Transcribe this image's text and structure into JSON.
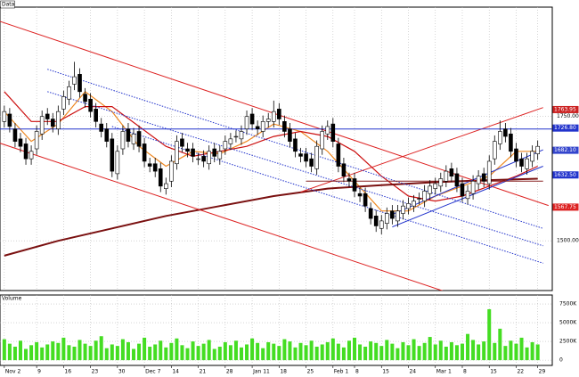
{
  "chart_data": [
    {
      "type": "candlestick",
      "title": "Data",
      "xlim": [
        -0.8,
        101.7
      ],
      "ylim": [
        1400,
        1970
      ],
      "yticks": [
        {
          "value": 1750,
          "label": "1750.00"
        },
        {
          "value": 1500,
          "label": "1500.00"
        }
      ],
      "grid": true,
      "up_color": "#ffffff",
      "down_color": "#000000",
      "open": [
        1740,
        1755,
        1725,
        1705,
        1695,
        1665,
        1685,
        1715,
        1755,
        1745,
        1725,
        1765,
        1785,
        1815,
        1835,
        1795,
        1785,
        1765,
        1735,
        1725,
        1705,
        1635,
        1685,
        1725,
        1695,
        1720,
        1695,
        1655,
        1655,
        1645,
        1605,
        1620,
        1655,
        1705,
        1685,
        1685,
        1665,
        1670,
        1655,
        1685,
        1665,
        1685,
        1695,
        1710,
        1705,
        1725,
        1755,
        1730,
        1720,
        1740,
        1740,
        1765,
        1740,
        1725,
        1705,
        1675,
        1675,
        1665,
        1645,
        1685,
        1715,
        1735,
        1695,
        1655,
        1625,
        1625,
        1595,
        1595,
        1565,
        1550,
        1525,
        1535,
        1560,
        1540,
        1555,
        1565,
        1570,
        1585,
        1580,
        1595,
        1605,
        1610,
        1620,
        1645,
        1635,
        1615,
        1585,
        1595,
        1615,
        1635,
        1615,
        1665,
        1695,
        1725,
        1715,
        1685,
        1665,
        1645,
        1660,
        1675
      ],
      "high": [
        1772,
        1767,
        1737,
        1717,
        1707,
        1692,
        1732,
        1762,
        1767,
        1757,
        1772,
        1802,
        1822,
        1860,
        1847,
        1807,
        1797,
        1777,
        1747,
        1737,
        1717,
        1692,
        1732,
        1737,
        1727,
        1732,
        1707,
        1667,
        1667,
        1657,
        1627,
        1672,
        1712,
        1717,
        1697,
        1697,
        1677,
        1682,
        1692,
        1697,
        1692,
        1712,
        1717,
        1722,
        1732,
        1762,
        1767,
        1742,
        1752,
        1757,
        1782,
        1777,
        1752,
        1737,
        1717,
        1687,
        1687,
        1677,
        1702,
        1732,
        1742,
        1747,
        1707,
        1667,
        1637,
        1637,
        1607,
        1607,
        1577,
        1562,
        1552,
        1567,
        1572,
        1572,
        1582,
        1587,
        1592,
        1597,
        1612,
        1622,
        1627,
        1637,
        1652,
        1657,
        1647,
        1627,
        1612,
        1632,
        1642,
        1647,
        1672,
        1712,
        1742,
        1737,
        1727,
        1697,
        1677,
        1677,
        1692,
        1702
      ],
      "low": [
        1728,
        1718,
        1688,
        1678,
        1653,
        1653,
        1673,
        1703,
        1733,
        1718,
        1713,
        1753,
        1773,
        1803,
        1788,
        1768,
        1748,
        1728,
        1708,
        1688,
        1628,
        1623,
        1673,
        1688,
        1683,
        1678,
        1648,
        1638,
        1628,
        1598,
        1593,
        1608,
        1643,
        1678,
        1668,
        1658,
        1653,
        1648,
        1643,
        1658,
        1653,
        1673,
        1683,
        1698,
        1693,
        1713,
        1723,
        1713,
        1708,
        1728,
        1728,
        1733,
        1708,
        1688,
        1668,
        1658,
        1648,
        1638,
        1633,
        1673,
        1703,
        1688,
        1638,
        1618,
        1608,
        1588,
        1578,
        1558,
        1533,
        1518,
        1513,
        1523,
        1533,
        1528,
        1543,
        1553,
        1558,
        1573,
        1568,
        1583,
        1593,
        1598,
        1608,
        1618,
        1598,
        1578,
        1573,
        1583,
        1603,
        1608,
        1603,
        1653,
        1683,
        1698,
        1668,
        1648,
        1638,
        1633,
        1648,
        1663
      ],
      "close": [
        1760,
        1730,
        1700,
        1690,
        1665,
        1680,
        1720,
        1750,
        1745,
        1730,
        1760,
        1790,
        1810,
        1830,
        1800,
        1780,
        1760,
        1740,
        1720,
        1700,
        1640,
        1680,
        1720,
        1700,
        1715,
        1690,
        1660,
        1650,
        1640,
        1610,
        1615,
        1660,
        1700,
        1690,
        1680,
        1670,
        1665,
        1660,
        1680,
        1670,
        1680,
        1700,
        1705,
        1710,
        1720,
        1750,
        1735,
        1725,
        1740,
        1745,
        1760,
        1745,
        1720,
        1700,
        1680,
        1670,
        1660,
        1650,
        1690,
        1720,
        1730,
        1700,
        1650,
        1630,
        1620,
        1600,
        1590,
        1570,
        1545,
        1530,
        1540,
        1555,
        1545,
        1560,
        1570,
        1575,
        1580,
        1585,
        1600,
        1610,
        1615,
        1625,
        1640,
        1630,
        1610,
        1590,
        1600,
        1620,
        1630,
        1620,
        1660,
        1700,
        1720,
        1710,
        1680,
        1660,
        1650,
        1665,
        1680,
        1690
      ],
      "lines": [
        {
          "x": [
            0,
            5,
            10,
            15,
            20,
            25,
            30,
            35,
            40,
            45,
            50,
            55,
            60,
            65,
            70,
            75,
            80,
            85,
            90,
            95,
            99
          ],
          "values": [
            1760,
            1700,
            1735,
            1800,
            1760,
            1690,
            1650,
            1680,
            1675,
            1700,
            1735,
            1720,
            1680,
            1620,
            1560,
            1560,
            1590,
            1610,
            1630,
            1680,
            1680
          ],
          "color": "#ee8822",
          "width": 1.2
        },
        {
          "x": [
            0,
            5,
            10,
            15,
            20,
            25,
            30,
            35,
            40,
            45,
            50,
            55,
            60,
            65,
            70,
            75,
            80,
            85,
            90,
            95,
            99
          ],
          "values": [
            1800,
            1740,
            1740,
            1770,
            1770,
            1730,
            1690,
            1670,
            1680,
            1690,
            1710,
            1720,
            1710,
            1680,
            1630,
            1590,
            1580,
            1590,
            1610,
            1630,
            1650
          ],
          "color": "#cc1111",
          "width": 1.2
        },
        {
          "x": [
            0,
            10,
            20,
            30,
            40,
            50,
            60,
            70,
            80,
            90,
            99
          ],
          "values": [
            1470,
            1500,
            1525,
            1550,
            1570,
            1590,
            1605,
            1612,
            1618,
            1622,
            1625
          ],
          "color": "#7a1010",
          "width": 2
        },
        {
          "x": [
            -1,
            101
          ],
          "values": [
            1942,
            1571
          ],
          "color": "#dd2222",
          "width": 1
        },
        {
          "x": [
            -1,
            84
          ],
          "values": [
            1697,
            1390
          ],
          "color": "#dd2222",
          "width": 1
        },
        {
          "x": [
            55,
            100
          ],
          "values": [
            1598,
            1768
          ],
          "color": "#dd2222",
          "width": 1
        },
        {
          "x": [
            8,
            100
          ],
          "values": [
            1845,
            1525
          ],
          "color": "#2233cc",
          "width": 1,
          "dash": true
        },
        {
          "x": [
            8,
            100
          ],
          "values": [
            1800,
            1490
          ],
          "color": "#2233cc",
          "width": 1,
          "dash": true
        },
        {
          "x": [
            20,
            100
          ],
          "values": [
            1730,
            1455
          ],
          "color": "#2233cc",
          "width": 1,
          "dash": true
        },
        {
          "x": [
            -1,
            102
          ],
          "values": [
            1725,
            1725
          ],
          "color": "#2233cc",
          "width": 1
        },
        {
          "x": [
            72,
            100
          ],
          "values": [
            1553,
            1683
          ],
          "color": "#2233cc",
          "width": 1
        },
        {
          "x": [
            72,
            100
          ],
          "values": [
            1528,
            1650
          ],
          "color": "#2233cc",
          "width": 1
        },
        {
          "x": [
            56,
            100
          ],
          "values": [
            1620,
            1620
          ],
          "color": "#882222",
          "width": 1
        }
      ],
      "price_tags": [
        {
          "value": 1763.95,
          "label": "1763.95",
          "color": "#cc2222"
        },
        {
          "value": 1726.8,
          "label": "1726.80",
          "color": "#2233cc"
        },
        {
          "value": 1682.1,
          "label": "1682.10",
          "color": "#3344cc"
        },
        {
          "value": 1632.5,
          "label": "1632.50",
          "color": "#2233cc"
        },
        {
          "value": 1567.75,
          "label": "1567.75",
          "color": "#dd2222"
        }
      ]
    },
    {
      "type": "bar",
      "title": "Volume",
      "color": "#44dd22",
      "xlim": [
        -0.8,
        101.7
      ],
      "ylim": [
        -700,
        8700
      ],
      "yticks": [
        {
          "value": 7500,
          "label": "7500K"
        },
        {
          "value": 5000,
          "label": "5000K"
        },
        {
          "value": 2500,
          "label": "2500K"
        },
        0
      ],
      "xticks": [
        {
          "value": 0,
          "label": "Nov 2"
        },
        {
          "value": 6,
          "label": "9"
        },
        {
          "value": 11,
          "label": "16"
        },
        {
          "value": 16,
          "label": "23"
        },
        {
          "value": 21,
          "label": "30"
        },
        {
          "value": 26,
          "label": "Dec 7"
        },
        {
          "value": 31,
          "label": "14"
        },
        {
          "value": 36,
          "label": "21"
        },
        {
          "value": 41,
          "label": "28"
        },
        {
          "value": 46,
          "label": "Jan 11"
        },
        {
          "value": 51,
          "label": "18"
        },
        {
          "value": 56,
          "label": "25"
        },
        {
          "value": 61,
          "label": "Feb 1"
        },
        {
          "value": 65,
          "label": "8"
        },
        {
          "value": 70,
          "label": "15"
        },
        {
          "value": 75,
          "label": "24"
        },
        {
          "value": 80,
          "label": "Mar 1"
        },
        {
          "value": 85,
          "label": "8"
        },
        {
          "value": 90,
          "label": "15"
        },
        {
          "value": 95,
          "label": "22"
        },
        {
          "value": 99,
          "label": "29"
        }
      ],
      "values": [
        2800,
        2200,
        1800,
        2600,
        1500,
        2000,
        2400,
        1700,
        2100,
        2500,
        2300,
        3000,
        2000,
        1800,
        2700,
        2200,
        1900,
        2600,
        3200,
        1600,
        2100,
        1900,
        2800,
        2400,
        1500,
        2200,
        3000,
        1800,
        2100,
        2600,
        1700,
        2300,
        2900,
        2000,
        1600,
        2500,
        1900,
        2200,
        2700,
        1500,
        1800,
        2400,
        2000,
        2600,
        1700,
        2100,
        2900,
        2300,
        1600,
        2400,
        2200,
        1900,
        2800,
        2500,
        1700,
        2300,
        2000,
        2600,
        1800,
        2100,
        2400,
        2900,
        2200,
        1700,
        2600,
        3000,
        2100,
        1800,
        2500,
        2300,
        1900,
        2700,
        2200,
        1600,
        2400,
        2000,
        2800,
        1900,
        2300,
        3100,
        2100,
        2600,
        1800,
        2400,
        2000,
        2200,
        3500,
        2700,
        2100,
        2500,
        6800,
        2300,
        4200,
        1900,
        2600,
        2200,
        3000,
        1700,
        2400,
        2100
      ]
    }
  ]
}
